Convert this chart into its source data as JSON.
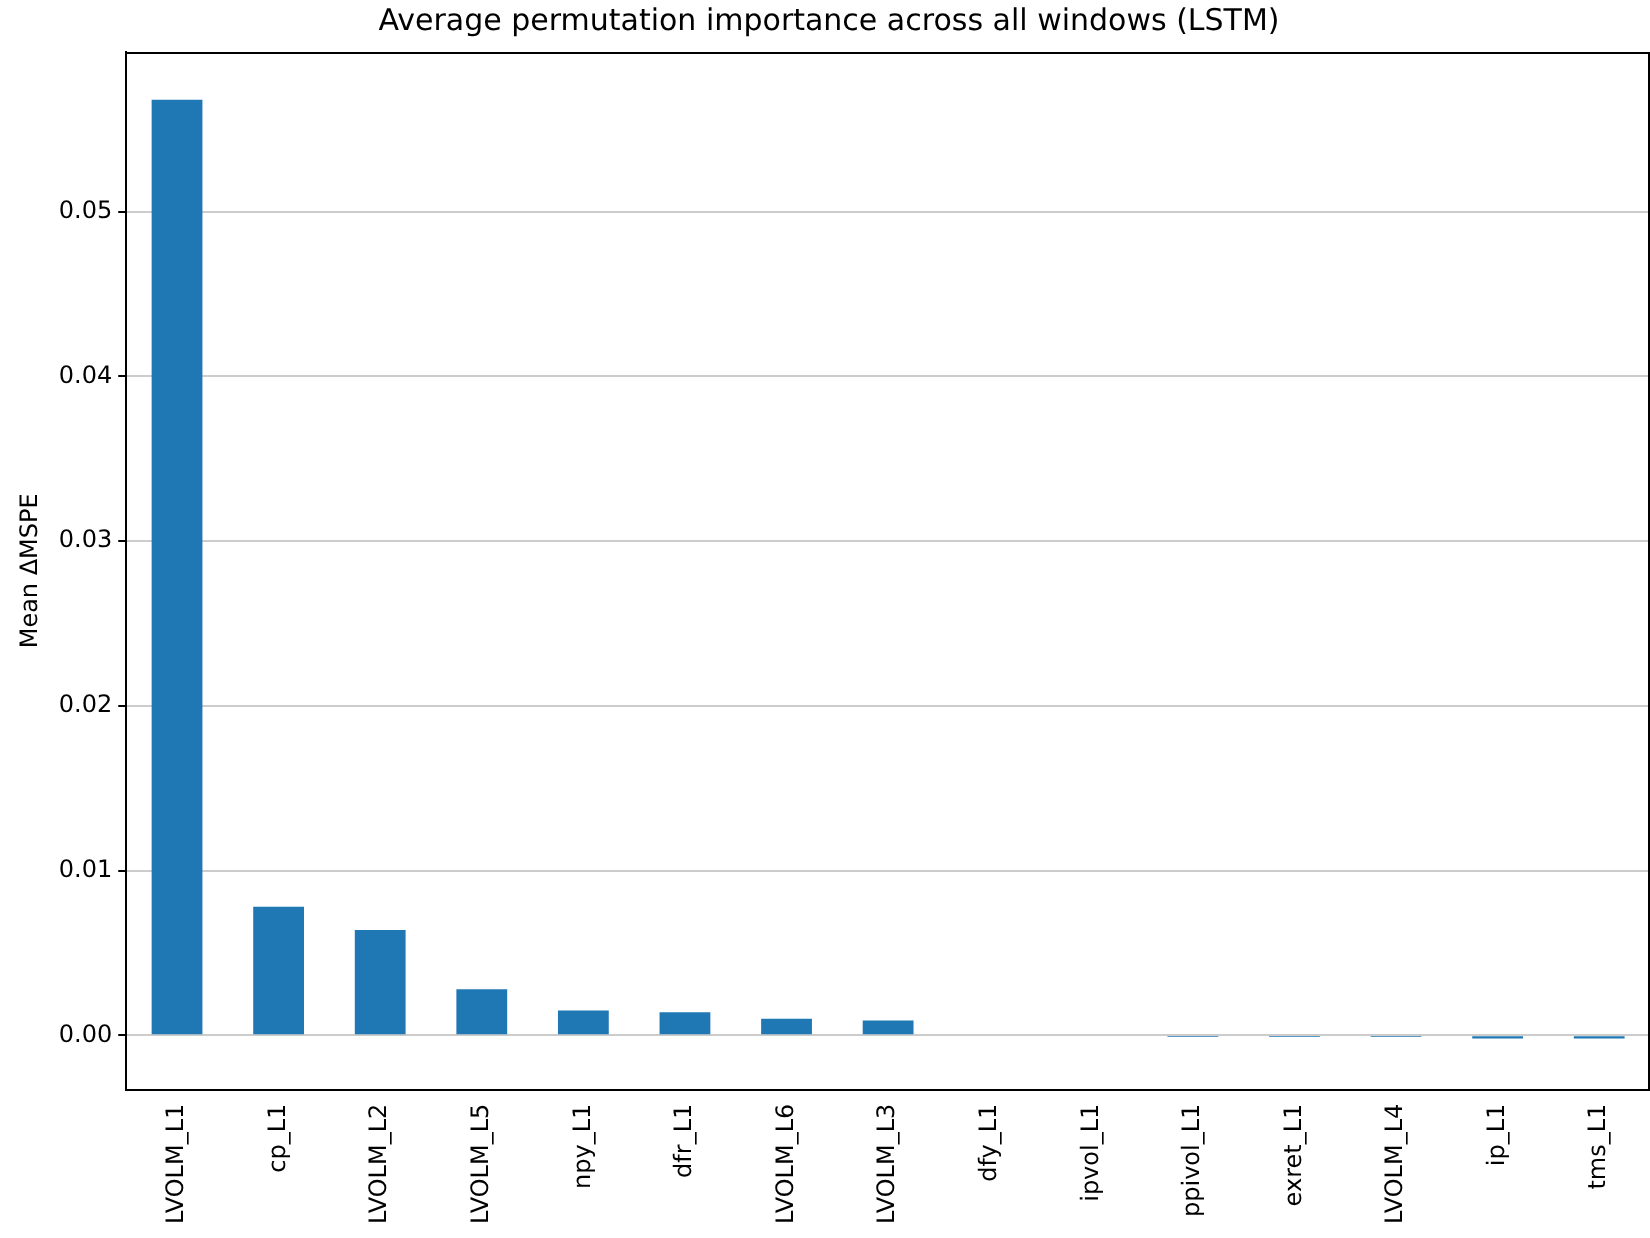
{
  "chart_data": {
    "type": "bar",
    "title": "Average permutation importance across all windows (LSTM)",
    "ylabel": "Mean ΔMSPE",
    "categories": [
      "LVOLM_L1",
      "cp_L1",
      "LVOLM_L2",
      "LVOLM_L5",
      "npy_L1",
      "dfr_L1",
      "LVOLM_L6",
      "LVOLM_L3",
      "dfy_L1",
      "ipvol_L1",
      "ppivol_L1",
      "exret_L1",
      "LVOLM_L4",
      "ip_L1",
      "tms_L1"
    ],
    "values": [
      0.0568,
      0.0078,
      0.0064,
      0.0028,
      0.0015,
      0.0014,
      0.001,
      0.0009,
      0,
      0,
      -0.0001,
      -0.0001,
      -0.0001,
      -0.0002,
      -0.0002
    ],
    "color": "#1f77b4",
    "ylim": [
      -0.0033,
      0.0597
    ],
    "yticks": [
      {
        "value": 0,
        "label": "0.00"
      },
      {
        "value": 0.01,
        "label": "0.01"
      },
      {
        "value": 0.02,
        "label": "0.02"
      },
      {
        "value": 0.03,
        "label": "0.03"
      },
      {
        "value": 0.04,
        "label": "0.04"
      },
      {
        "value": 0.05,
        "label": "0.05"
      }
    ],
    "grid": "y"
  }
}
